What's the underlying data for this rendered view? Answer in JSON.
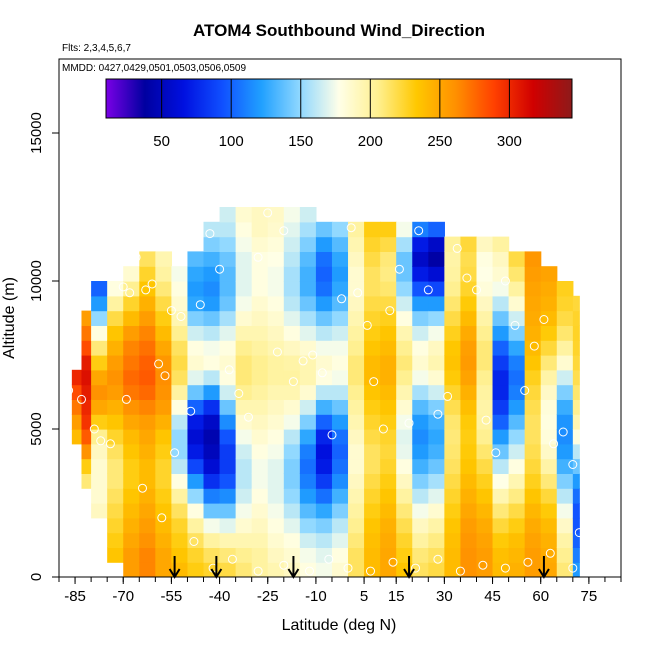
{
  "chart_data": {
    "type": "heatmap",
    "title": "ATOM4 Southbound Wind_Direction",
    "flights_label": "Flts: 2,3,4,5,6,7",
    "dates_label": "MMDD: 0427,0429,0501,0503,0506,0509",
    "xlabel": "Latitude (deg N)",
    "ylabel": "Altitude (m)",
    "xlim": [
      -90,
      85
    ],
    "ylim": [
      0,
      17500
    ],
    "x_ticks": [
      -85,
      -70,
      -55,
      -40,
      -25,
      -10,
      5,
      15,
      30,
      45,
      60,
      75
    ],
    "x_tick_labels": [
      "-85",
      "-70",
      "-55",
      "-40",
      "-25",
      "-10",
      "5",
      "15",
      "30",
      "45",
      "60",
      "75"
    ],
    "y_ticks": [
      0,
      5000,
      10000,
      15000
    ],
    "y_tick_labels": [
      "0",
      "5000",
      "10000",
      "15000"
    ],
    "colorbar": {
      "range": [
        10,
        345
      ],
      "ticks": [
        50,
        100,
        150,
        200,
        250,
        300
      ],
      "tick_labels": [
        "50",
        "100",
        "150",
        "200",
        "250",
        "300"
      ],
      "palette": [
        "#7a00e6",
        "#0000a0",
        "#0010e0",
        "#1050ff",
        "#20a0ff",
        "#90d8ff",
        "#ffffe8",
        "#fff090",
        "#ffc800",
        "#ff9000",
        "#ff4000",
        "#d00000",
        "#8e1a1a"
      ]
    },
    "arrows_lat": [
      -54,
      -41,
      -17,
      19,
      61
    ],
    "lat_bands": [
      -86,
      -83,
      -80,
      -75,
      -70,
      -65,
      -60,
      -55,
      -50,
      -45,
      -40,
      -35,
      -30,
      -25,
      -20,
      -15,
      -10,
      -5,
      0,
      5,
      10,
      15,
      20,
      25,
      30,
      35,
      40,
      45,
      50,
      55,
      60,
      65,
      70,
      72
    ],
    "alt_levels": [
      0,
      500,
      1000,
      1500,
      2000,
      2500,
      3000,
      3500,
      4000,
      4500,
      5000,
      5500,
      6000,
      6500,
      7000,
      7500,
      8000,
      8500,
      9000,
      9500,
      10000,
      10500,
      11000,
      11500,
      12000,
      12500
    ],
    "top_altitude_by_band": [
      7000,
      9000,
      10000,
      10000,
      10500,
      11000,
      11000,
      10500,
      11000,
      12000,
      12500,
      12500,
      12500,
      12500,
      12500,
      12500,
      12000,
      12000,
      12000,
      12000,
      12000,
      12000,
      12000,
      12000,
      11500,
      11500,
      11500,
      11500,
      11000,
      11000,
      10500,
      10000,
      9500
    ],
    "bottom_altitude_by_band": [
      4500,
      3000,
      2000,
      500,
      0,
      0,
      0,
      0,
      0,
      0,
      0,
      0,
      0,
      0,
      0,
      0,
      0,
      0,
      0,
      0,
      0,
      0,
      0,
      0,
      0,
      0,
      0,
      0,
      0,
      0,
      0,
      0,
      0
    ],
    "wind_direction_grid": [
      [
        255,
        245,
        235,
        225,
        215,
        210,
        205,
        215,
        225,
        240,
        255,
        270,
        285,
        300,
        300,
        280,
        270,
        250,
        240,
        230,
        230,
        225,
        220,
        215,
        215
      ],
      [
        250,
        245,
        235,
        225,
        215,
        210,
        210,
        230,
        260,
        280,
        295,
        300,
        305,
        310,
        305,
        285,
        270,
        255,
        245,
        235,
        230,
        225,
        220,
        215,
        215
      ],
      [
        230,
        225,
        215,
        200,
        190,
        185,
        185,
        185,
        190,
        205,
        230,
        250,
        260,
        250,
        230,
        210,
        180,
        150,
        120,
        100,
        120,
        150,
        190,
        210,
        220
      ],
      [
        240,
        235,
        230,
        225,
        220,
        215,
        210,
        210,
        215,
        225,
        235,
        245,
        255,
        260,
        255,
        245,
        235,
        220,
        200,
        180,
        160,
        150,
        160,
        190,
        215
      ],
      [
        255,
        255,
        250,
        245,
        240,
        235,
        230,
        230,
        235,
        240,
        250,
        260,
        270,
        275,
        270,
        265,
        255,
        240,
        225,
        205,
        185,
        170,
        165,
        175,
        195
      ],
      [
        265,
        265,
        260,
        255,
        250,
        245,
        240,
        240,
        245,
        250,
        255,
        265,
        275,
        280,
        278,
        272,
        265,
        255,
        245,
        235,
        225,
        215,
        210,
        210,
        210
      ],
      [
        250,
        250,
        245,
        240,
        235,
        230,
        225,
        225,
        230,
        235,
        245,
        255,
        260,
        262,
        258,
        250,
        240,
        230,
        220,
        210,
        200,
        195,
        190,
        190,
        190
      ],
      [
        240,
        235,
        230,
        225,
        215,
        200,
        180,
        160,
        150,
        150,
        160,
        180,
        200,
        215,
        220,
        215,
        205,
        195,
        185,
        180,
        175,
        175,
        175,
        180,
        185
      ],
      [
        230,
        225,
        215,
        200,
        180,
        150,
        120,
        90,
        70,
        60,
        70,
        100,
        140,
        170,
        185,
        180,
        165,
        145,
        125,
        120,
        125,
        135,
        150,
        165,
        175
      ],
      [
        225,
        215,
        200,
        175,
        140,
        110,
        80,
        60,
        50,
        45,
        55,
        80,
        120,
        160,
        180,
        175,
        160,
        140,
        120,
        115,
        120,
        130,
        145,
        160,
        170
      ],
      [
        220,
        210,
        195,
        170,
        140,
        115,
        95,
        85,
        85,
        95,
        115,
        140,
        165,
        180,
        185,
        180,
        170,
        155,
        140,
        135,
        135,
        140,
        150,
        160,
        165
      ],
      [
        210,
        205,
        195,
        185,
        175,
        165,
        160,
        160,
        165,
        175,
        185,
        195,
        205,
        210,
        210,
        205,
        195,
        185,
        175,
        170,
        170,
        170,
        175,
        180,
        185
      ],
      [
        200,
        200,
        195,
        190,
        185,
        180,
        175,
        175,
        180,
        185,
        190,
        195,
        200,
        205,
        205,
        200,
        195,
        190,
        185,
        180,
        180,
        180,
        185,
        190,
        190
      ],
      [
        195,
        190,
        185,
        180,
        175,
        170,
        170,
        170,
        175,
        180,
        185,
        190,
        195,
        200,
        200,
        195,
        190,
        185,
        180,
        175,
        175,
        178,
        182,
        186,
        188
      ],
      [
        190,
        185,
        180,
        170,
        160,
        150,
        145,
        145,
        150,
        160,
        175,
        185,
        195,
        200,
        198,
        190,
        180,
        170,
        160,
        155,
        155,
        160,
        165,
        170,
        175
      ],
      [
        180,
        175,
        165,
        150,
        135,
        120,
        110,
        105,
        110,
        125,
        145,
        165,
        185,
        195,
        195,
        185,
        170,
        155,
        140,
        130,
        130,
        135,
        145,
        155,
        165
      ],
      [
        175,
        170,
        160,
        145,
        125,
        105,
        85,
        70,
        65,
        75,
        100,
        130,
        160,
        180,
        185,
        175,
        160,
        140,
        120,
        105,
        100,
        105,
        120,
        140,
        155
      ],
      [
        185,
        180,
        170,
        160,
        145,
        130,
        115,
        105,
        100,
        105,
        120,
        140,
        160,
        175,
        180,
        175,
        165,
        150,
        135,
        125,
        120,
        125,
        135,
        150,
        165
      ],
      [
        215,
        215,
        210,
        205,
        200,
        195,
        190,
        185,
        185,
        190,
        195,
        200,
        205,
        210,
        210,
        205,
        200,
        195,
        190,
        185,
        185,
        190,
        195,
        200,
        205
      ],
      [
        240,
        240,
        238,
        235,
        230,
        225,
        220,
        215,
        215,
        220,
        225,
        230,
        235,
        240,
        240,
        235,
        230,
        225,
        220,
        215,
        215,
        220,
        225,
        230,
        235
      ],
      [
        250,
        250,
        248,
        245,
        240,
        235,
        230,
        225,
        222,
        225,
        230,
        235,
        240,
        245,
        245,
        240,
        235,
        228,
        220,
        212,
        208,
        210,
        220,
        230,
        240
      ],
      [
        235,
        230,
        225,
        218,
        210,
        200,
        190,
        180,
        172,
        170,
        175,
        185,
        195,
        205,
        210,
        205,
        195,
        180,
        165,
        150,
        140,
        140,
        155,
        175,
        200
      ],
      [
        215,
        210,
        200,
        190,
        175,
        160,
        145,
        130,
        120,
        115,
        120,
        135,
        155,
        175,
        185,
        180,
        165,
        145,
        120,
        95,
        70,
        55,
        70,
        110,
        160
      ],
      [
        220,
        215,
        208,
        198,
        185,
        170,
        155,
        140,
        130,
        125,
        130,
        145,
        165,
        185,
        195,
        190,
        175,
        150,
        120,
        90,
        60,
        40,
        55,
        100,
        160
      ],
      [
        240,
        240,
        238,
        235,
        230,
        225,
        220,
        215,
        212,
        210,
        212,
        218,
        225,
        232,
        236,
        234,
        228,
        220,
        212,
        205,
        200,
        198,
        202,
        212,
        225
      ],
      [
        260,
        260,
        258,
        255,
        250,
        245,
        240,
        235,
        232,
        230,
        232,
        238,
        245,
        252,
        256,
        254,
        248,
        240,
        232,
        225,
        220,
        218,
        222,
        232,
        245
      ],
      [
        255,
        255,
        252,
        248,
        242,
        235,
        228,
        220,
        212,
        205,
        200,
        198,
        200,
        205,
        210,
        210,
        205,
        198,
        190,
        182,
        178,
        180,
        190,
        205,
        225
      ],
      [
        240,
        238,
        232,
        222,
        210,
        195,
        178,
        160,
        140,
        120,
        100,
        85,
        75,
        75,
        85,
        100,
        120,
        140,
        160,
        175,
        185,
        190,
        200,
        215,
        235
      ],
      [
        245,
        242,
        238,
        230,
        220,
        208,
        195,
        180,
        165,
        150,
        135,
        120,
        110,
        105,
        110,
        125,
        145,
        165,
        185,
        200,
        212,
        220,
        228,
        238,
        250
      ],
      [
        255,
        255,
        252,
        248,
        242,
        235,
        228,
        222,
        218,
        215,
        215,
        218,
        222,
        228,
        235,
        240,
        245,
        248,
        250,
        252,
        255,
        258,
        262,
        268,
        275
      ],
      [
        250,
        248,
        245,
        240,
        232,
        222,
        210,
        198,
        188,
        182,
        180,
        182,
        188,
        198,
        210,
        222,
        232,
        240,
        245,
        248,
        252,
        256,
        260,
        265,
        270
      ],
      [
        210,
        205,
        198,
        188,
        175,
        160,
        145,
        130,
        120,
        115,
        118,
        128,
        145,
        165,
        185,
        200,
        212,
        220,
        225,
        228,
        230,
        232,
        235,
        240,
        245
      ],
      [
        120,
        110,
        100,
        95,
        95,
        105,
        120,
        140,
        160,
        180,
        195,
        205,
        212,
        218,
        222,
        225,
        226,
        225,
        222,
        218,
        215,
        214,
        215,
        220,
        228
      ]
    ],
    "observation_points": [
      [
        -87,
        6300
      ],
      [
        -83,
        6000
      ],
      [
        -79,
        5000
      ],
      [
        -77,
        4600
      ],
      [
        -74,
        4500
      ],
      [
        -70,
        9800
      ],
      [
        -68,
        9600
      ],
      [
        -66,
        10800
      ],
      [
        -63,
        9700
      ],
      [
        -61,
        9900
      ],
      [
        -59,
        7200
      ],
      [
        -57,
        6800
      ],
      [
        -55,
        9000
      ],
      [
        -52,
        8800
      ],
      [
        -49,
        5600
      ],
      [
        -46,
        9200
      ],
      [
        -43,
        11600
      ],
      [
        -40,
        10400
      ],
      [
        -37,
        7000
      ],
      [
        -34,
        6200
      ],
      [
        -31,
        5400
      ],
      [
        -28,
        10800
      ],
      [
        -25,
        12300
      ],
      [
        -22,
        7600
      ],
      [
        -20,
        11700
      ],
      [
        -17,
        6600
      ],
      [
        -14,
        7300
      ],
      [
        -11,
        7500
      ],
      [
        -8,
        6900
      ],
      [
        -5,
        4800
      ],
      [
        -2,
        9400
      ],
      [
        1,
        11800
      ],
      [
        3,
        9600
      ],
      [
        6,
        8500
      ],
      [
        8,
        6600
      ],
      [
        11,
        5000
      ],
      [
        13,
        9000
      ],
      [
        16,
        10400
      ],
      [
        19,
        5200
      ],
      [
        22,
        11700
      ],
      [
        25,
        9700
      ],
      [
        28,
        5500
      ],
      [
        31,
        6100
      ],
      [
        34,
        11100
      ],
      [
        37,
        10100
      ],
      [
        40,
        9700
      ],
      [
        43,
        5300
      ],
      [
        46,
        4200
      ],
      [
        49,
        10000
      ],
      [
        52,
        8500
      ],
      [
        55,
        6300
      ],
      [
        58,
        7800
      ],
      [
        61,
        8700
      ],
      [
        64,
        4500
      ],
      [
        67,
        4900
      ],
      [
        70,
        3800
      ],
      [
        72,
        1500
      ],
      [
        -69,
        6000
      ],
      [
        -64,
        3000
      ],
      [
        -58,
        2000
      ],
      [
        -54,
        4200
      ],
      [
        -48,
        1200
      ],
      [
        -42,
        300
      ],
      [
        -36,
        600
      ],
      [
        -28,
        200
      ],
      [
        -20,
        400
      ],
      [
        -12,
        200
      ],
      [
        -6,
        600
      ],
      [
        0,
        300
      ],
      [
        7,
        200
      ],
      [
        14,
        500
      ],
      [
        21,
        300
      ],
      [
        28,
        600
      ],
      [
        35,
        200
      ],
      [
        42,
        400
      ],
      [
        49,
        300
      ],
      [
        56,
        500
      ],
      [
        63,
        800
      ],
      [
        70,
        300
      ]
    ]
  }
}
